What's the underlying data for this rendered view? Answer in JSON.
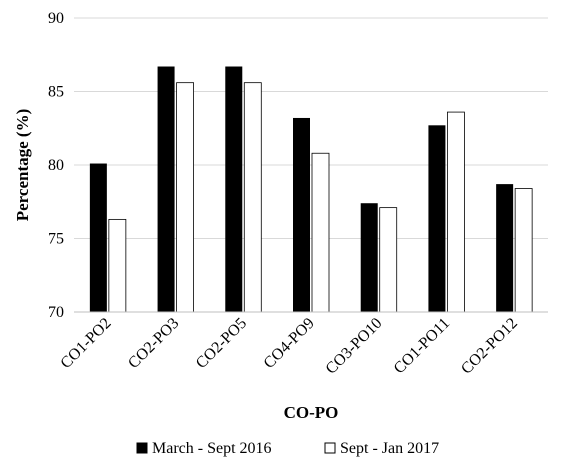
{
  "chart_data": {
    "type": "bar",
    "title": "",
    "xlabel": "CO-PO",
    "ylabel": "Percentage (%)",
    "ylim": [
      70,
      90
    ],
    "yticks": [
      70,
      75,
      80,
      85,
      90
    ],
    "grid": true,
    "legend_position": "bottom",
    "categories": [
      "CO1-PO2",
      "CO2-PO3",
      "CO2-PO5",
      "CO4-PO9",
      "CO3-PO10",
      "CO1-PO11",
      "CO2-PO12"
    ],
    "series": [
      {
        "name": "March - Sept 2016",
        "color": "#000000",
        "values": [
          80.1,
          86.7,
          86.7,
          83.2,
          77.4,
          82.7,
          78.7
        ]
      },
      {
        "name": "Sept - Jan 2017",
        "color": "#ffffff",
        "values": [
          76.3,
          85.6,
          85.6,
          80.8,
          77.1,
          83.6,
          78.4
        ]
      }
    ]
  }
}
